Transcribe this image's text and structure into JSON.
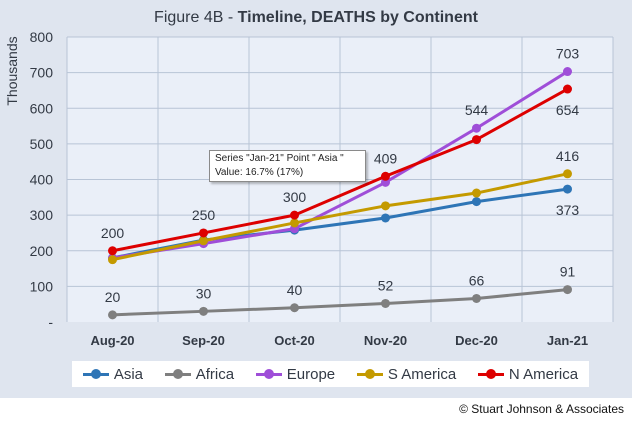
{
  "chart_data": {
    "type": "line",
    "title": {
      "prefix": "Figure 4B - ",
      "main": "Timeline, DEATHS by Continent"
    },
    "ylabel": "Thousands",
    "xlabel": "",
    "categories": [
      "Aug-20",
      "Sep-20",
      "Oct-20",
      "Nov-20",
      "Dec-20",
      "Jan-21"
    ],
    "ylim": [
      0,
      800
    ],
    "y_ticks": [
      "-",
      "100",
      "200",
      "300",
      "400",
      "500",
      "600",
      "700",
      "800"
    ],
    "grid": true,
    "legend_position": "bottom",
    "series": [
      {
        "name": "Asia",
        "color": "#2e75b6",
        "values": [
          180,
          230,
          258,
          292,
          338,
          373
        ]
      },
      {
        "name": "Africa",
        "color": "#7f7f7f",
        "values": [
          20,
          30,
          40,
          52,
          66,
          91
        ]
      },
      {
        "name": "Europe",
        "color": "#9f4ed8",
        "values": [
          180,
          220,
          262,
          392,
          544,
          703
        ]
      },
      {
        "name": "S America",
        "color": "#c49a00",
        "values": [
          175,
          228,
          278,
          326,
          362,
          416
        ]
      },
      {
        "name": "N America",
        "color": "#dd0000",
        "values": [
          200,
          250,
          300,
          409,
          512,
          654
        ]
      }
    ],
    "data_labels": [
      {
        "series": "N America",
        "index": 0,
        "text": "200",
        "pos": "above"
      },
      {
        "series": "N America",
        "index": 1,
        "text": "250",
        "pos": "above"
      },
      {
        "series": "N America",
        "index": 2,
        "text": "300",
        "pos": "above"
      },
      {
        "series": "N America",
        "index": 3,
        "text": "409",
        "pos": "above"
      },
      {
        "series": "Europe",
        "index": 4,
        "text": "544",
        "pos": "above"
      },
      {
        "series": "Europe",
        "index": 5,
        "text": "703",
        "pos": "above"
      },
      {
        "series": "N America",
        "index": 5,
        "text": "654",
        "pos": "below"
      },
      {
        "series": "S America",
        "index": 5,
        "text": "416",
        "pos": "above"
      },
      {
        "series": "Asia",
        "index": 5,
        "text": "373",
        "pos": "below"
      },
      {
        "series": "Africa",
        "index": 0,
        "text": "20",
        "pos": "above"
      },
      {
        "series": "Africa",
        "index": 1,
        "text": "30",
        "pos": "above"
      },
      {
        "series": "Africa",
        "index": 2,
        "text": "40",
        "pos": "above"
      },
      {
        "series": "Africa",
        "index": 3,
        "text": "52",
        "pos": "above"
      },
      {
        "series": "Africa",
        "index": 4,
        "text": "66",
        "pos": "above"
      },
      {
        "series": "Africa",
        "index": 5,
        "text": "91",
        "pos": "above"
      }
    ],
    "tooltip": {
      "line1": "Series \"Jan-21\" Point \" Asia \"",
      "line2": "Value: 16.7% (17%)"
    },
    "colors": {
      "background": "#dfe5ef",
      "plot_background": "#eaeff8",
      "gridline": "#b8c4d6"
    }
  },
  "copyright": "© Stuart Johnson & Associates"
}
